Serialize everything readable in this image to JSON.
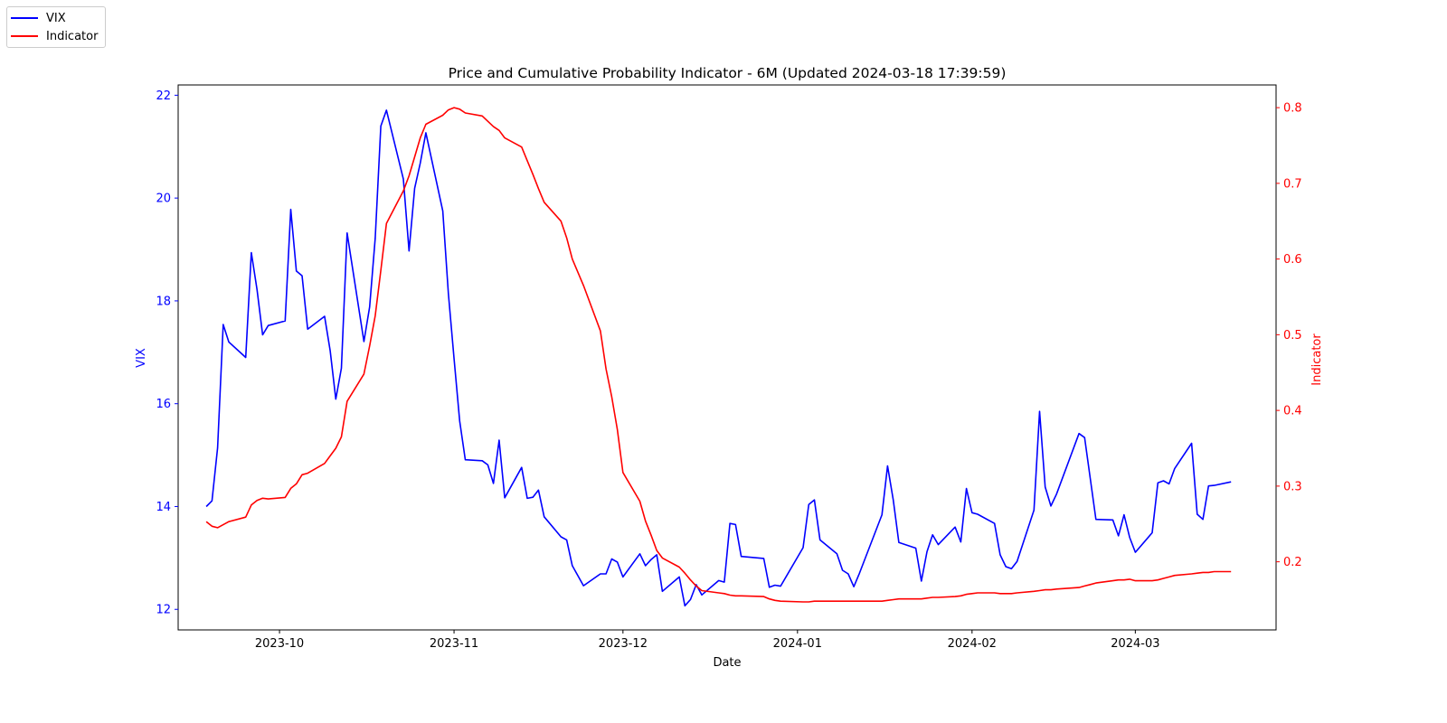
{
  "chart_data": {
    "type": "line",
    "title": "Price and Cumulative Probability Indicator - 6M (Updated 2024-03-18 17:39:59)",
    "xlabel": "Date",
    "ylabel_left": "VIX",
    "ylabel_right": "Indicator",
    "x_ticks": [
      "2023-10",
      "2023-11",
      "2023-12",
      "2024-01",
      "2024-02",
      "2024-03"
    ],
    "y_left_ticks": [
      "12",
      "14",
      "16",
      "18",
      "20",
      "22"
    ],
    "y_right_ticks": [
      "0.2",
      "0.3",
      "0.4",
      "0.5",
      "0.6",
      "0.7",
      "0.8"
    ],
    "xlim": [
      "2023-09-13",
      "2024-03-26"
    ],
    "ylim_left": [
      11.6,
      22.2
    ],
    "ylim_right": [
      0.11,
      0.83
    ],
    "legend_position": "top-left outside",
    "grid": false,
    "colors": {
      "vix": "#0000ff",
      "indicator": "#ff0000",
      "left_axis": "#0000ff",
      "right_axis": "#ff0000"
    },
    "series": [
      {
        "name": "VIX",
        "axis": "left",
        "x": [
          "2023-09-18",
          "2023-09-19",
          "2023-09-20",
          "2023-09-21",
          "2023-09-22",
          "2023-09-25",
          "2023-09-26",
          "2023-09-27",
          "2023-09-28",
          "2023-09-29",
          "2023-10-02",
          "2023-10-03",
          "2023-10-04",
          "2023-10-05",
          "2023-10-06",
          "2023-10-09",
          "2023-10-10",
          "2023-10-11",
          "2023-10-12",
          "2023-10-13",
          "2023-10-16",
          "2023-10-17",
          "2023-10-18",
          "2023-10-19",
          "2023-10-20",
          "2023-10-23",
          "2023-10-24",
          "2023-10-25",
          "2023-10-26",
          "2023-10-27",
          "2023-10-30",
          "2023-10-31",
          "2023-11-01",
          "2023-11-02",
          "2023-11-03",
          "2023-11-06",
          "2023-11-07",
          "2023-11-08",
          "2023-11-09",
          "2023-11-10",
          "2023-11-13",
          "2023-11-14",
          "2023-11-15",
          "2023-11-16",
          "2023-11-17",
          "2023-11-20",
          "2023-11-21",
          "2023-11-22",
          "2023-11-24",
          "2023-11-27",
          "2023-11-28",
          "2023-11-29",
          "2023-11-30",
          "2023-12-01",
          "2023-12-04",
          "2023-12-05",
          "2023-12-06",
          "2023-12-07",
          "2023-12-08",
          "2023-12-11",
          "2023-12-12",
          "2023-12-13",
          "2023-12-14",
          "2023-12-15",
          "2023-12-18",
          "2023-12-19",
          "2023-12-20",
          "2023-12-21",
          "2023-12-22",
          "2023-12-26",
          "2023-12-27",
          "2023-12-28",
          "2023-12-29",
          "2024-01-02",
          "2024-01-03",
          "2024-01-04",
          "2024-01-05",
          "2024-01-08",
          "2024-01-09",
          "2024-01-10",
          "2024-01-11",
          "2024-01-12",
          "2024-01-16",
          "2024-01-17",
          "2024-01-18",
          "2024-01-19",
          "2024-01-22",
          "2024-01-23",
          "2024-01-24",
          "2024-01-25",
          "2024-01-26",
          "2024-01-29",
          "2024-01-30",
          "2024-01-31",
          "2024-02-01",
          "2024-02-02",
          "2024-02-05",
          "2024-02-06",
          "2024-02-07",
          "2024-02-08",
          "2024-02-09",
          "2024-02-12",
          "2024-02-13",
          "2024-02-14",
          "2024-02-15",
          "2024-02-16",
          "2024-02-20",
          "2024-02-21",
          "2024-02-22",
          "2024-02-23",
          "2024-02-26",
          "2024-02-27",
          "2024-02-28",
          "2024-02-29",
          "2024-03-01",
          "2024-03-04",
          "2024-03-05",
          "2024-03-06",
          "2024-03-07",
          "2024-03-08",
          "2024-03-11",
          "2024-03-12",
          "2024-03-13",
          "2024-03-14",
          "2024-03-15",
          "2024-03-18"
        ],
        "y": [
          14.0,
          14.11,
          15.14,
          17.54,
          17.2,
          16.9,
          18.94,
          18.22,
          17.34,
          17.52,
          17.61,
          19.78,
          18.58,
          18.49,
          17.45,
          17.7,
          17.03,
          16.09,
          16.69,
          19.32,
          17.21,
          17.88,
          19.22,
          21.4,
          21.71,
          20.37,
          18.97,
          20.19,
          20.68,
          21.27,
          19.75,
          18.14,
          16.87,
          15.66,
          14.91,
          14.89,
          14.81,
          14.45,
          15.29,
          14.17,
          14.76,
          14.16,
          14.18,
          14.32,
          13.8,
          13.41,
          13.35,
          12.85,
          12.46,
          12.69,
          12.69,
          12.98,
          12.92,
          12.63,
          13.08,
          12.85,
          12.97,
          13.06,
          12.35,
          12.63,
          12.07,
          12.19,
          12.48,
          12.28,
          12.56,
          12.53,
          13.67,
          13.65,
          13.03,
          12.99,
          12.43,
          12.47,
          12.45,
          13.2,
          14.04,
          14.13,
          13.35,
          13.08,
          12.76,
          12.69,
          12.44,
          12.7,
          13.84,
          14.79,
          14.13,
          13.3,
          13.19,
          12.55,
          13.12,
          13.45,
          13.26,
          13.6,
          13.31,
          14.35,
          13.88,
          13.85,
          13.67,
          13.06,
          12.83,
          12.79,
          12.93,
          13.93,
          15.85,
          14.38,
          14.01,
          14.24,
          15.42,
          15.34,
          14.54,
          13.75,
          13.74,
          13.43,
          13.84,
          13.4,
          13.11,
          13.49,
          14.46,
          14.5,
          14.44,
          14.74,
          15.23,
          13.85,
          13.75,
          14.4,
          14.41,
          14.48
        ]
      },
      {
        "name": "Indicator",
        "axis": "right",
        "x": [
          "2023-09-18",
          "2023-09-19",
          "2023-09-20",
          "2023-09-21",
          "2023-09-22",
          "2023-09-25",
          "2023-09-26",
          "2023-09-27",
          "2023-09-28",
          "2023-09-29",
          "2023-10-02",
          "2023-10-03",
          "2023-10-04",
          "2023-10-05",
          "2023-10-06",
          "2023-10-09",
          "2023-10-10",
          "2023-10-11",
          "2023-10-12",
          "2023-10-13",
          "2023-10-16",
          "2023-10-17",
          "2023-10-18",
          "2023-10-19",
          "2023-10-20",
          "2023-10-23",
          "2023-10-24",
          "2023-10-25",
          "2023-10-26",
          "2023-10-27",
          "2023-10-30",
          "2023-10-31",
          "2023-11-01",
          "2023-11-02",
          "2023-11-03",
          "2023-11-06",
          "2023-11-07",
          "2023-11-08",
          "2023-11-09",
          "2023-11-10",
          "2023-11-13",
          "2023-11-14",
          "2023-11-15",
          "2023-11-16",
          "2023-11-17",
          "2023-11-20",
          "2023-11-21",
          "2023-11-22",
          "2023-11-24",
          "2023-11-27",
          "2023-11-28",
          "2023-11-29",
          "2023-11-30",
          "2023-12-01",
          "2023-12-04",
          "2023-12-05",
          "2023-12-06",
          "2023-12-07",
          "2023-12-08",
          "2023-12-11",
          "2023-12-12",
          "2023-12-13",
          "2023-12-14",
          "2023-12-15",
          "2023-12-18",
          "2023-12-19",
          "2023-12-20",
          "2023-12-21",
          "2023-12-22",
          "2023-12-26",
          "2023-12-27",
          "2023-12-28",
          "2023-12-29",
          "2024-01-02",
          "2024-01-03",
          "2024-01-04",
          "2024-01-05",
          "2024-01-08",
          "2024-01-09",
          "2024-01-10",
          "2024-01-11",
          "2024-01-12",
          "2024-01-16",
          "2024-01-17",
          "2024-01-18",
          "2024-01-19",
          "2024-01-22",
          "2024-01-23",
          "2024-01-24",
          "2024-01-25",
          "2024-01-26",
          "2024-01-29",
          "2024-01-30",
          "2024-01-31",
          "2024-02-01",
          "2024-02-02",
          "2024-02-05",
          "2024-02-06",
          "2024-02-07",
          "2024-02-08",
          "2024-02-09",
          "2024-02-12",
          "2024-02-13",
          "2024-02-14",
          "2024-02-15",
          "2024-02-16",
          "2024-02-20",
          "2024-02-21",
          "2024-02-22",
          "2024-02-23",
          "2024-02-26",
          "2024-02-27",
          "2024-02-28",
          "2024-02-29",
          "2024-03-01",
          "2024-03-04",
          "2024-03-05",
          "2024-03-06",
          "2024-03-07",
          "2024-03-08",
          "2024-03-11",
          "2024-03-12",
          "2024-03-13",
          "2024-03-14",
          "2024-03-15",
          "2024-03-18"
        ],
        "y": [
          0.253,
          0.247,
          0.245,
          0.249,
          0.253,
          0.259,
          0.275,
          0.281,
          0.284,
          0.283,
          0.285,
          0.297,
          0.303,
          0.315,
          0.317,
          0.33,
          0.34,
          0.35,
          0.365,
          0.412,
          0.448,
          0.485,
          0.525,
          0.585,
          0.647,
          0.69,
          0.71,
          0.735,
          0.76,
          0.778,
          0.79,
          0.797,
          0.8,
          0.798,
          0.793,
          0.789,
          0.782,
          0.775,
          0.77,
          0.76,
          0.748,
          0.73,
          0.712,
          0.693,
          0.675,
          0.65,
          0.628,
          0.6,
          0.565,
          0.505,
          0.455,
          0.418,
          0.375,
          0.318,
          0.28,
          0.254,
          0.235,
          0.215,
          0.205,
          0.193,
          0.185,
          0.176,
          0.168,
          0.162,
          0.159,
          0.158,
          0.156,
          0.155,
          0.155,
          0.154,
          0.151,
          0.149,
          0.148,
          0.147,
          0.147,
          0.148,
          0.148,
          0.148,
          0.148,
          0.148,
          0.148,
          0.148,
          0.148,
          0.149,
          0.15,
          0.151,
          0.151,
          0.151,
          0.152,
          0.153,
          0.153,
          0.154,
          0.155,
          0.157,
          0.158,
          0.159,
          0.159,
          0.158,
          0.158,
          0.158,
          0.159,
          0.161,
          0.162,
          0.163,
          0.163,
          0.164,
          0.166,
          0.168,
          0.17,
          0.172,
          0.175,
          0.176,
          0.176,
          0.177,
          0.175,
          0.175,
          0.176,
          0.178,
          0.18,
          0.182,
          0.184,
          0.185,
          0.186,
          0.186,
          0.187,
          0.187
        ]
      }
    ]
  }
}
